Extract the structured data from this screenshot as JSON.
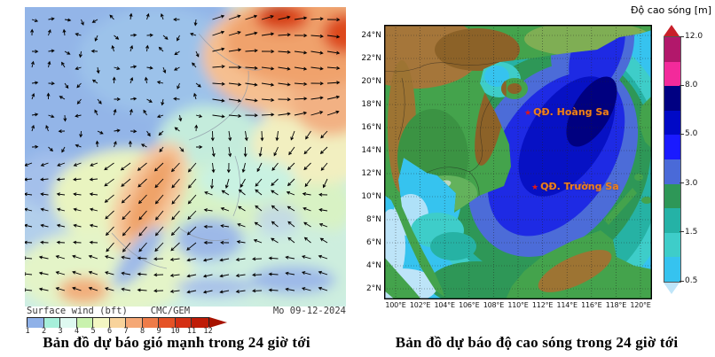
{
  "left_panel": {
    "legend_label": "Surface wind (bft)",
    "model_label": "CMC/GEM",
    "date_label": "Mo 09-12-2024",
    "caption": "Bản đồ dự báo gió mạnh trong 24 giờ tới",
    "colorbar": {
      "tick_labels": [
        "1",
        "2",
        "3",
        "4",
        "5",
        "6",
        "7",
        "8",
        "9",
        "10",
        "11",
        "12"
      ],
      "segment_colors": [
        "#8fb1e8",
        "#a6efda",
        "#def9f0",
        "#c9f2ae",
        "#f3f6c2",
        "#f8d39b",
        "#f5a876",
        "#ee7c49",
        "#e55226",
        "#d43014",
        "#bf1c07"
      ],
      "arrow_color": "#a71300"
    }
  },
  "right_panel": {
    "colorbar": {
      "title": "Độ cao sóng [m]",
      "tick_labels": [
        "12.0",
        "8.0",
        "5.0",
        "3.0",
        "1.5",
        "0.5"
      ],
      "segment_colors": [
        "#b2186b",
        "#f32a9b",
        "#000082",
        "#0009c6",
        "#1a1aff",
        "#4a6ad8",
        "#2e9757",
        "#25b2a6",
        "#3ecdc9",
        "#36c3ef"
      ],
      "arrow_top_color": "#c9202a",
      "arrow_bottom_color": "#bfe5f9"
    },
    "y_tick_labels": [
      "24°N",
      "22°N",
      "20°N",
      "18°N",
      "16°N",
      "14°N",
      "12°N",
      "10°N",
      "8°N",
      "6°N",
      "4°N",
      "2°N"
    ],
    "x_tick_labels": [
      "100°E",
      "102°E",
      "104°E",
      "106°E",
      "108°E",
      "110°E",
      "112°E",
      "114°E",
      "116°E",
      "118°E",
      "120°E"
    ],
    "map_labels": [
      {
        "text": "QĐ. Hoàng Sa",
        "color": "#f08019"
      },
      {
        "text": "QĐ. Trường Sa",
        "color": "#f08019"
      }
    ],
    "caption": "Bản đồ dự báo độ cao sóng trong 24 giờ tới"
  }
}
